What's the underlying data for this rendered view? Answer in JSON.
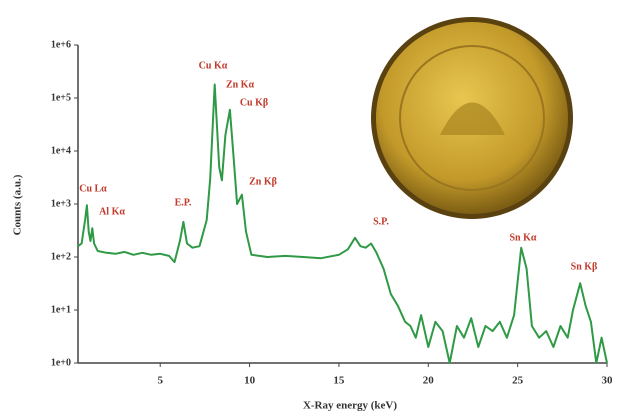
{
  "chart_data": {
    "type": "line",
    "xlabel": "X-Ray energy (keV)",
    "ylabel": "Counts (a.u.)",
    "log_y": true,
    "xlim": [
      0.4,
      30
    ],
    "ylim": [
      1,
      1000000
    ],
    "xticks": [
      5,
      10,
      15,
      20,
      25,
      30
    ],
    "yticks": [
      {
        "value": 1,
        "label": "1e+0"
      },
      {
        "value": 10,
        "label": "1e+1"
      },
      {
        "value": 100,
        "label": "1e+2"
      },
      {
        "value": 1000,
        "label": "1e+3"
      },
      {
        "value": 10000,
        "label": "1e+4"
      },
      {
        "value": 100000,
        "label": "1e+5"
      },
      {
        "value": 1000000,
        "label": "1e+6"
      }
    ],
    "series": [
      {
        "color": "#2f9a45",
        "x": [
          0.4,
          0.6,
          0.8,
          0.9,
          1.0,
          1.1,
          1.2,
          1.3,
          1.5,
          2,
          2.5,
          3,
          3.5,
          4,
          4.5,
          5,
          5.5,
          5.8,
          6.1,
          6.3,
          6.5,
          6.8,
          7.2,
          7.6,
          7.8,
          8.05,
          8.3,
          8.45,
          8.65,
          8.9,
          9.1,
          9.3,
          9.57,
          9.8,
          10.1,
          11,
          12,
          13,
          14,
          15,
          15.5,
          15.9,
          16.2,
          16.5,
          16.8,
          17.1,
          17.5,
          17.9,
          18.3,
          18.7,
          19,
          19.3,
          19.6,
          20,
          20.4,
          20.8,
          21.2,
          21.6,
          22,
          22.4,
          22.8,
          23.2,
          23.6,
          24,
          24.4,
          24.8,
          25.2,
          25.5,
          25.8,
          26.2,
          26.6,
          27,
          27.4,
          27.8,
          28.1,
          28.5,
          28.8,
          29.1,
          29.4,
          29.7,
          30
        ],
        "values": [
          160,
          180,
          500,
          950,
          300,
          200,
          350,
          180,
          130,
          120,
          115,
          125,
          110,
          120,
          110,
          115,
          105,
          80,
          200,
          460,
          180,
          150,
          160,
          500,
          3000,
          180000,
          5000,
          2800,
          20000,
          60000,
          8000,
          1000,
          1500,
          300,
          110,
          100,
          105,
          100,
          95,
          110,
          140,
          230,
          160,
          150,
          180,
          120,
          60,
          20,
          12,
          6,
          5,
          3,
          8,
          2,
          6,
          4,
          1,
          5,
          3,
          7,
          2,
          5,
          4,
          6,
          3,
          8,
          150,
          60,
          5,
          3,
          4,
          2,
          5,
          3,
          10,
          32,
          12,
          6,
          1,
          3,
          1
        ]
      }
    ],
    "annotations": [
      "Cu Lα",
      "Al Kα",
      "E.P.",
      "Cu Kα",
      "Zn Kα",
      "Cu Kβ",
      "Zn Kβ",
      "S.P.",
      "Sn Kα",
      "Sn Kβ"
    ]
  }
}
